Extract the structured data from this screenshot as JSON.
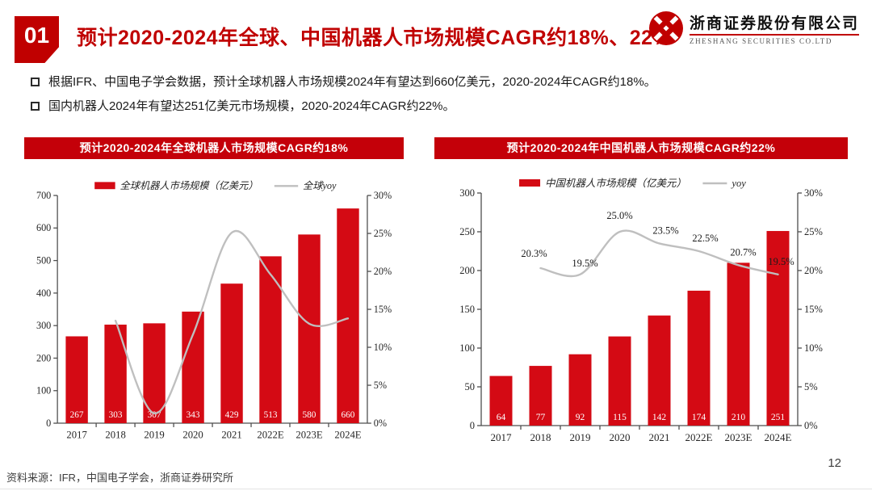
{
  "header": {
    "section_number": "01",
    "title": "预计2020-2024年全球、中国机器人市场规模CAGR约18%、22%",
    "logo": {
      "company_cn": "浙商证券股份有限公司",
      "company_en": "ZHESHANG SECURITIES CO.LTD"
    }
  },
  "bullets": [
    {
      "text": "根据IFR、中国电子学会数据，预计全球机器人市场规模2024年有望达到660亿美元，2020-2024年CAGR约18%。"
    },
    {
      "text": "国内机器人2024年有望达251亿美元市场规模，2020-2024年CAGR约22%。"
    }
  ],
  "footer": {
    "source": "资料来源：IFR，中国电子学会，浙商证券研究所",
    "page_number": "12"
  },
  "colors": {
    "brand_red": "#C00000",
    "banner_red": "#C40009",
    "bar_red": "#D40A14",
    "line_gray": "#BFBFBF",
    "axis_gray": "#4d4d4d"
  },
  "chart_data": [
    {
      "type": "bar",
      "banner": "预计2020-2024年全球机器人市场规模CAGR约18%",
      "categories": [
        "2017",
        "2018",
        "2019",
        "2020",
        "2021",
        "2022E",
        "2023E",
        "2024E"
      ],
      "series": [
        {
          "name": "全球机器人市场规模（亿美元）",
          "kind": "bar",
          "axis": "left",
          "values": [
            267,
            303,
            307,
            343,
            429,
            513,
            580,
            660
          ],
          "value_labels": [
            "267",
            "303",
            "307",
            "343",
            "429",
            "513",
            "580",
            "660"
          ]
        },
        {
          "name": "全球yoy",
          "kind": "line",
          "axis": "right",
          "values": [
            null,
            13.5,
            1.3,
            11.7,
            25.1,
            19.6,
            13.1,
            13.8
          ],
          "point_labels": null
        }
      ],
      "left_axis": {
        "min": 0,
        "max": 700,
        "step": 100,
        "suffix": ""
      },
      "right_axis": {
        "min": 0,
        "max": 30,
        "step": 5,
        "suffix": "%"
      },
      "grid": false,
      "legend_position": "top"
    },
    {
      "type": "bar",
      "banner": "预计2020-2024年中国机器人市场规模CAGR约22%",
      "categories": [
        "2017",
        "2018",
        "2019",
        "2020",
        "2021",
        "2022E",
        "2023E",
        "2024E"
      ],
      "series": [
        {
          "name": "中国机器人市场规模（亿美元）",
          "kind": "bar",
          "axis": "left",
          "values": [
            64,
            77,
            92,
            115,
            142,
            174,
            210,
            251
          ],
          "value_labels": [
            "64",
            "77",
            "92",
            "115",
            "142",
            "174",
            "210",
            "251"
          ]
        },
        {
          "name": "yoy",
          "kind": "line",
          "axis": "right",
          "values": [
            null,
            20.3,
            19.5,
            25.0,
            23.5,
            22.5,
            20.7,
            19.5
          ],
          "point_labels": [
            null,
            "20.3%",
            "19.5%",
            "25.0%",
            "23.5%",
            "22.5%",
            "20.7%",
            "19.5%"
          ]
        }
      ],
      "left_axis": {
        "min": 0,
        "max": 300,
        "step": 50,
        "suffix": ""
      },
      "right_axis": {
        "min": 0,
        "max": 30,
        "step": 5,
        "suffix": "%"
      },
      "grid": false,
      "legend_position": "top"
    }
  ]
}
